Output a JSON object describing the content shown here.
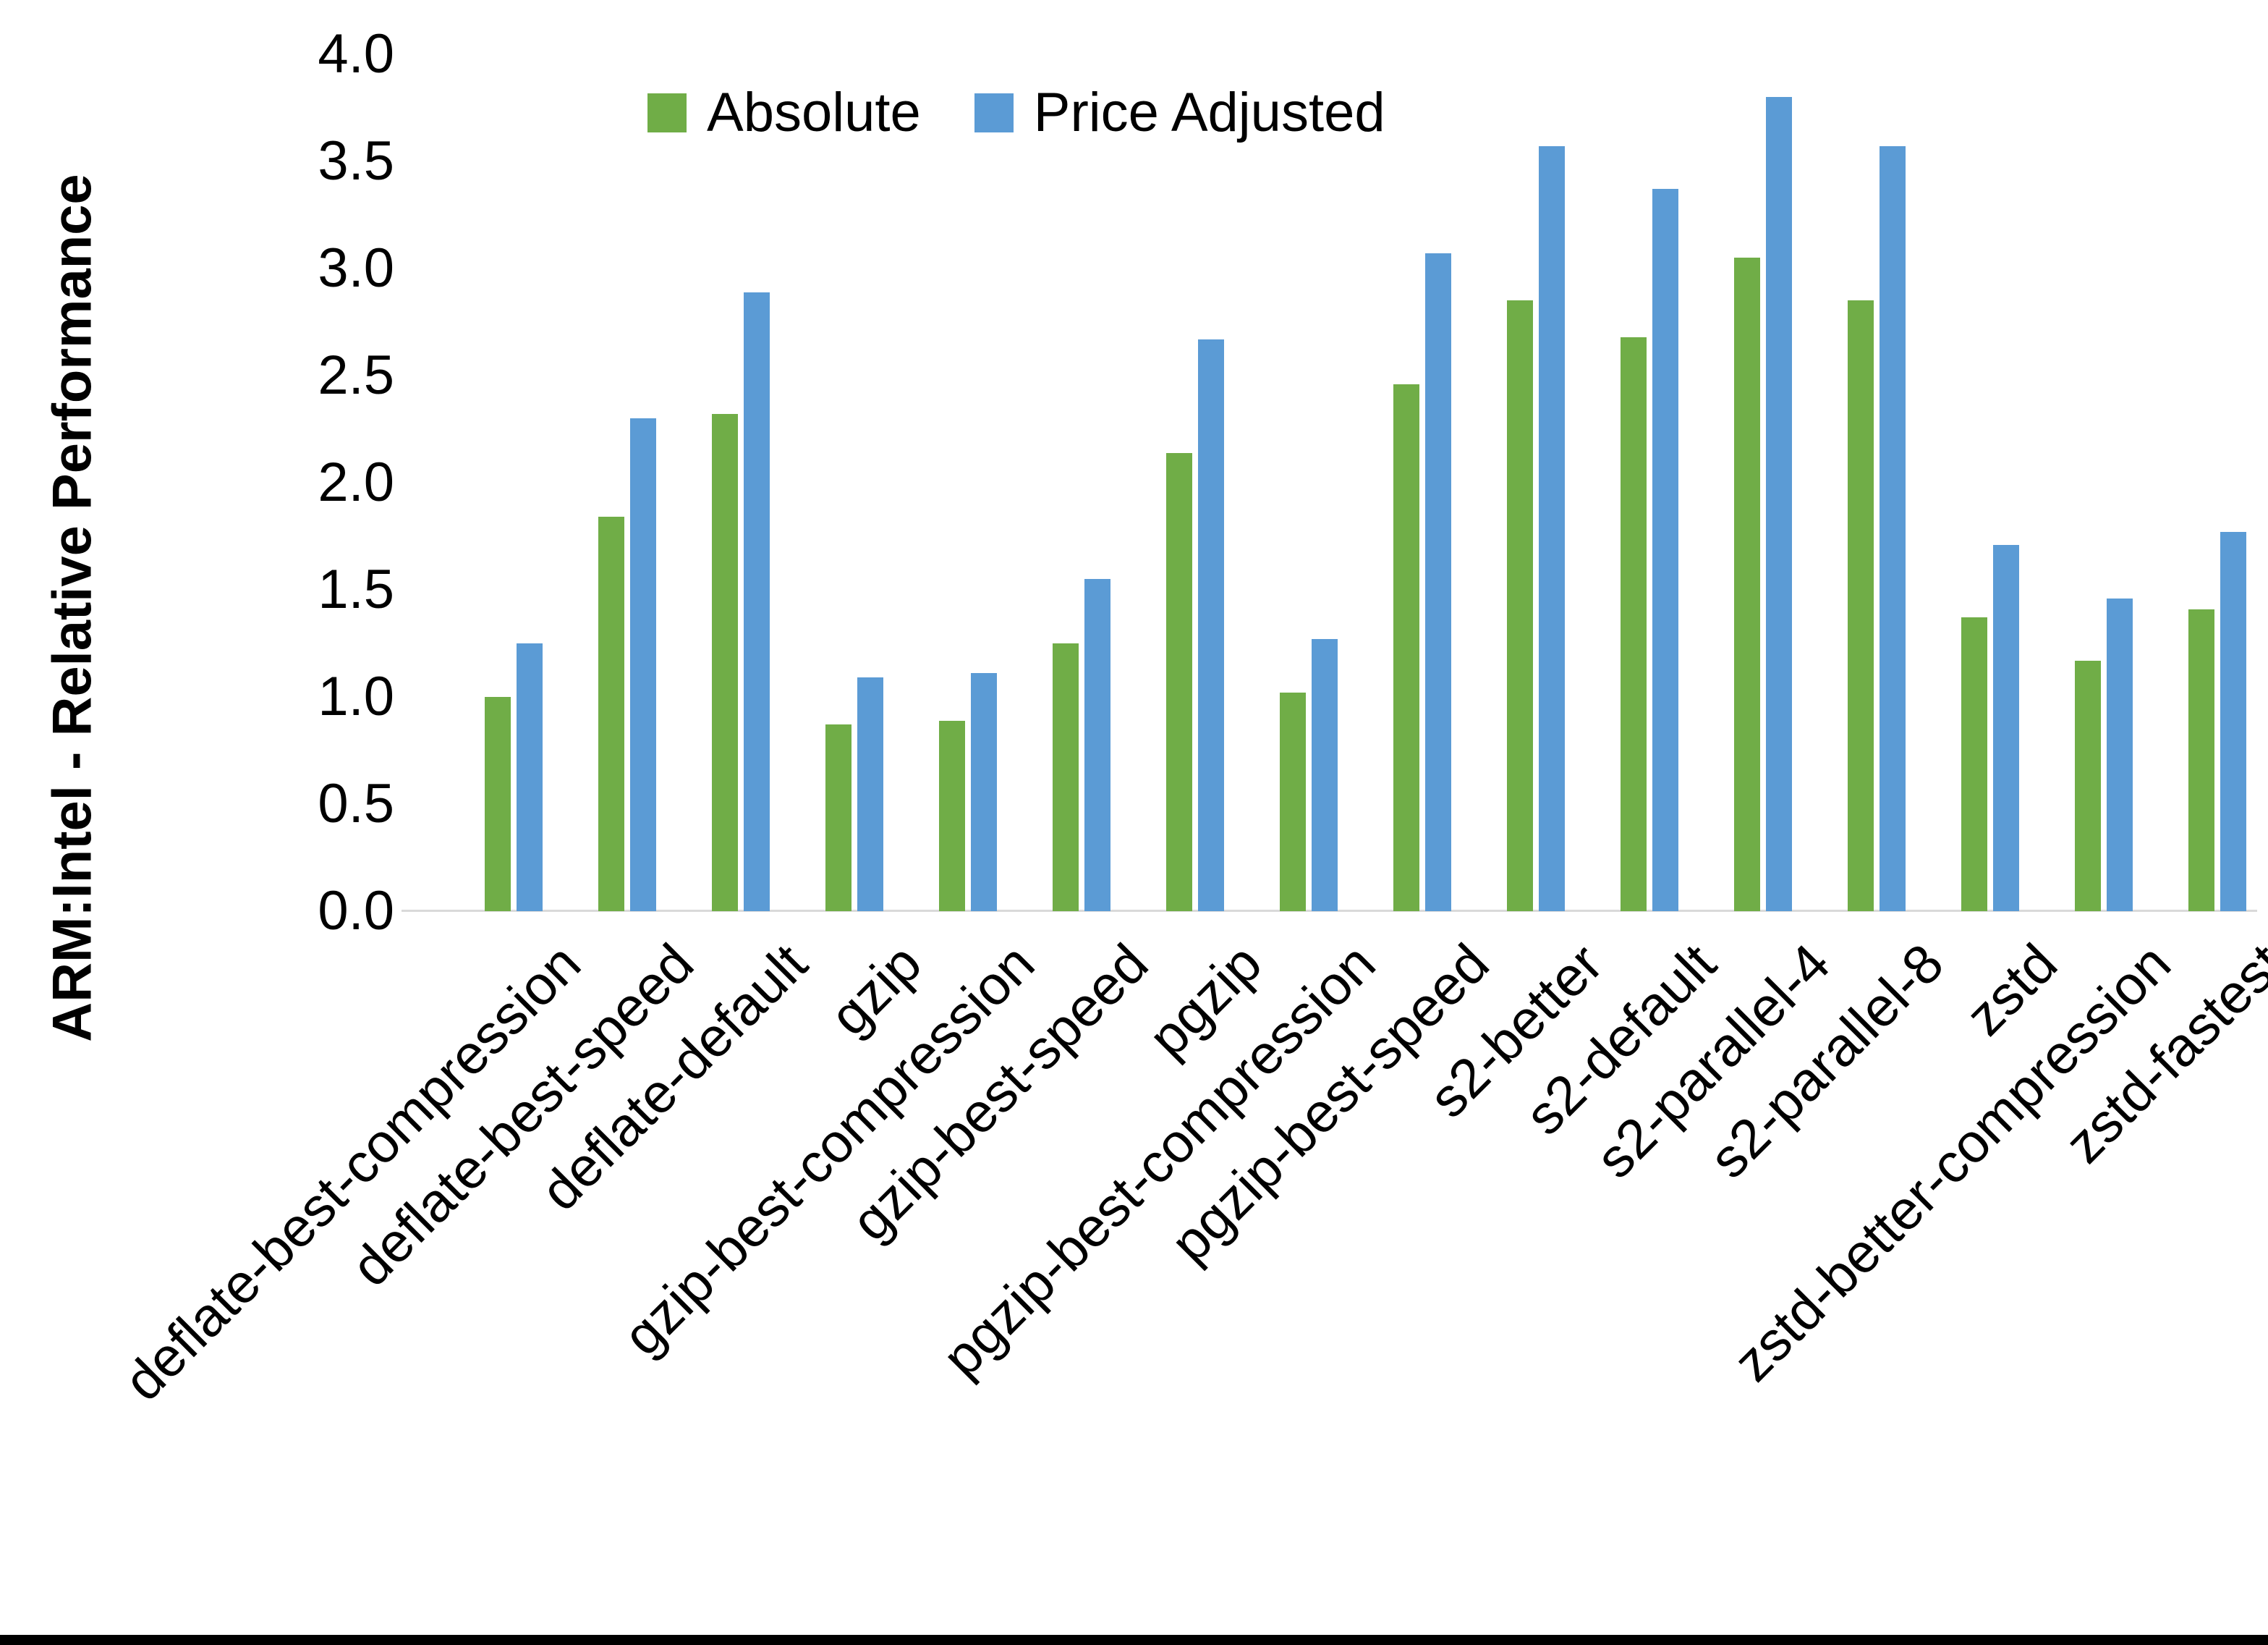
{
  "colors": {
    "absolute": "#70AD47",
    "price_adjusted": "#5B9BD5",
    "axis_line": "#D9D9D9",
    "bottom_border": "#000000",
    "background": "#FFFFFF",
    "text": "#000000"
  },
  "chart_data": {
    "type": "bar",
    "title": "",
    "xlabel": "",
    "ylabel": "ARM:Intel - Relative Performance",
    "ylim": [
      0.0,
      4.0
    ],
    "ytick_step": 0.5,
    "ytick_labels": [
      "0.0",
      "0.5",
      "1.0",
      "1.5",
      "2.0",
      "2.5",
      "3.0",
      "3.5",
      "4.0"
    ],
    "grid": false,
    "legend_position": "top-center",
    "categories": [
      "deflate-best-compression",
      "deflate-best-speed",
      "deflate-default",
      "gzip",
      "gzip-best-compression",
      "gzip-best-speed",
      "pgzip",
      "pgzip-best-compression",
      "pgzip-best-speed",
      "s2-better",
      "s2-default",
      "s2-parallel-4",
      "s2-parallel-8",
      "zstd",
      "zstd-better-compression",
      "zstd-fastest"
    ],
    "series": [
      {
        "name": "Absolute",
        "color": "#70AD47",
        "values": [
          1.0,
          1.84,
          2.32,
          0.87,
          0.89,
          1.25,
          2.14,
          1.02,
          2.46,
          2.85,
          2.68,
          3.05,
          2.85,
          1.37,
          1.17,
          1.41
        ]
      },
      {
        "name": "Price Adjusted",
        "color": "#5B9BD5",
        "values": [
          1.25,
          2.3,
          2.89,
          1.09,
          1.11,
          1.55,
          2.67,
          1.27,
          3.07,
          3.57,
          3.37,
          3.8,
          3.57,
          1.71,
          1.46,
          1.77
        ]
      }
    ]
  }
}
